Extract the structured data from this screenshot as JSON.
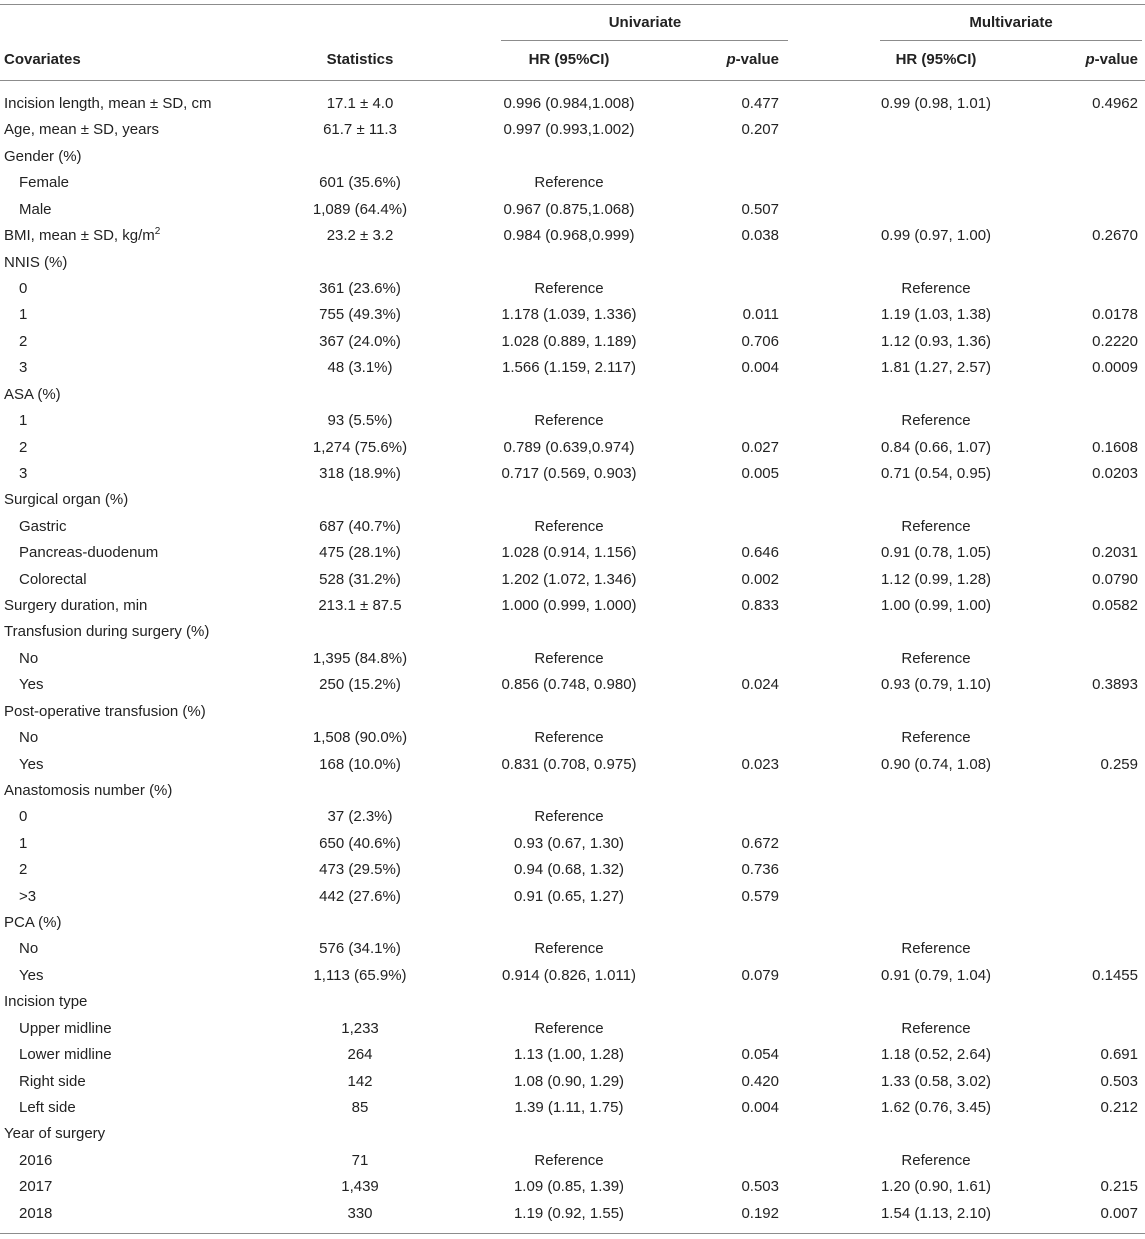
{
  "header": {
    "univariate": "Univariate",
    "multivariate": "Multivariate",
    "covariates": "Covariates",
    "statistics": "Statistics",
    "hr_uni": "HR (95%CI)",
    "p_uni_italic": "p",
    "p_uni_rest": "-value",
    "hr_multi": "HR (95%CI)",
    "p_multi_italic": "p",
    "p_multi_rest": "-value"
  },
  "rows": [
    {
      "label": "Incision length, mean ± SD, cm",
      "stat": "17.1 ± 4.0",
      "uni_hr": "0.996 (0.984,1.008)",
      "uni_p": "0.477",
      "multi_hr": "0.99 (0.98, 1.01)",
      "multi_p": "0.4962"
    },
    {
      "label": "Age, mean ± SD, years",
      "stat": "61.7 ± 11.3",
      "uni_hr": "0.997 (0.993,1.002)",
      "uni_p": "0.207",
      "multi_hr": "",
      "multi_p": ""
    },
    {
      "label": "Gender (%)",
      "stat": "",
      "uni_hr": "",
      "uni_p": "",
      "multi_hr": "",
      "multi_p": ""
    },
    {
      "label": "Female",
      "stat": "601 (35.6%)",
      "uni_hr": "Reference",
      "uni_p": "",
      "multi_hr": "",
      "multi_p": ""
    },
    {
      "label": "Male",
      "stat": "1,089 (64.4%)",
      "uni_hr": "0.967 (0.875,1.068)",
      "uni_p": "0.507",
      "multi_hr": "",
      "multi_p": ""
    },
    {
      "label": "BMI, mean ± SD, kg/m",
      "sup": "2",
      "stat": "23.2 ± 3.2",
      "uni_hr": "0.984 (0.968,0.999)",
      "uni_p": "0.038",
      "multi_hr": "0.99 (0.97, 1.00)",
      "multi_p": "0.2670"
    },
    {
      "label": "NNIS (%)",
      "stat": "",
      "uni_hr": "",
      "uni_p": "",
      "multi_hr": "",
      "multi_p": ""
    },
    {
      "label": "0",
      "stat": "361 (23.6%)",
      "uni_hr": "Reference",
      "uni_p": "",
      "multi_hr": "Reference",
      "multi_p": ""
    },
    {
      "label": "1",
      "stat": "755 (49.3%)",
      "uni_hr": "1.178 (1.039, 1.336)",
      "uni_p": "0.011",
      "multi_hr": "1.19 (1.03, 1.38)",
      "multi_p": "0.0178"
    },
    {
      "label": "2",
      "stat": "367 (24.0%)",
      "uni_hr": "1.028 (0.889, 1.189)",
      "uni_p": "0.706",
      "multi_hr": "1.12 (0.93, 1.36)",
      "multi_p": "0.2220"
    },
    {
      "label": "3",
      "stat": "48 (3.1%)",
      "uni_hr": "1.566 (1.159, 2.117)",
      "uni_p": "0.004",
      "multi_hr": "1.81 (1.27, 2.57)",
      "multi_p": "0.0009"
    },
    {
      "label": "ASA (%)",
      "stat": "",
      "uni_hr": "",
      "uni_p": "",
      "multi_hr": "",
      "multi_p": ""
    },
    {
      "label": "1",
      "stat": "93 (5.5%)",
      "uni_hr": "Reference",
      "uni_p": "",
      "multi_hr": "Reference",
      "multi_p": ""
    },
    {
      "label": "2",
      "stat": "1,274 (75.6%)",
      "uni_hr": "0.789 (0.639,0.974)",
      "uni_p": "0.027",
      "multi_hr": "0.84 (0.66, 1.07)",
      "multi_p": "0.1608"
    },
    {
      "label": "3",
      "stat": "318 (18.9%)",
      "uni_hr": "0.717 (0.569, 0.903)",
      "uni_p": "0.005",
      "multi_hr": "0.71 (0.54, 0.95)",
      "multi_p": "0.0203"
    },
    {
      "label": "Surgical organ (%)",
      "stat": "",
      "uni_hr": "",
      "uni_p": "",
      "multi_hr": "",
      "multi_p": ""
    },
    {
      "label": "Gastric",
      "stat": "687 (40.7%)",
      "uni_hr": "Reference",
      "uni_p": "",
      "multi_hr": "Reference",
      "multi_p": ""
    },
    {
      "label": "Pancreas-duodenum",
      "stat": "475 (28.1%)",
      "uni_hr": "1.028 (0.914, 1.156)",
      "uni_p": "0.646",
      "multi_hr": "0.91 (0.78, 1.05)",
      "multi_p": "0.2031"
    },
    {
      "label": "Colorectal",
      "stat": "528 (31.2%)",
      "uni_hr": "1.202 (1.072, 1.346)",
      "uni_p": "0.002",
      "multi_hr": "1.12 (0.99, 1.28)",
      "multi_p": "0.0790"
    },
    {
      "label": "Surgery duration, min",
      "stat": "213.1 ± 87.5",
      "uni_hr": "1.000 (0.999, 1.000)",
      "uni_p": "0.833",
      "multi_hr": "1.00 (0.99, 1.00)",
      "multi_p": "0.0582"
    },
    {
      "label": "Transfusion during surgery (%)",
      "stat": "",
      "uni_hr": "",
      "uni_p": "",
      "multi_hr": "",
      "multi_p": ""
    },
    {
      "label": "No",
      "stat": "1,395 (84.8%)",
      "uni_hr": "Reference",
      "uni_p": "",
      "multi_hr": "Reference",
      "multi_p": ""
    },
    {
      "label": "Yes",
      "stat": "250 (15.2%)",
      "uni_hr": "0.856 (0.748, 0.980)",
      "uni_p": "0.024",
      "multi_hr": "0.93 (0.79, 1.10)",
      "multi_p": "0.3893"
    },
    {
      "label": "Post-operative transfusion (%)",
      "stat": "",
      "uni_hr": "",
      "uni_p": "",
      "multi_hr": "",
      "multi_p": ""
    },
    {
      "label": "No",
      "stat": "1,508 (90.0%)",
      "uni_hr": "Reference",
      "uni_p": "",
      "multi_hr": "Reference",
      "multi_p": ""
    },
    {
      "label": "Yes",
      "stat": "168 (10.0%)",
      "uni_hr": "0.831 (0.708, 0.975)",
      "uni_p": "0.023",
      "multi_hr": "0.90 (0.74, 1.08)",
      "multi_p": "0.259"
    },
    {
      "label": "Anastomosis number (%)",
      "stat": "",
      "uni_hr": "",
      "uni_p": "",
      "multi_hr": "",
      "multi_p": ""
    },
    {
      "label": "0",
      "stat": "37 (2.3%)",
      "uni_hr": "Reference",
      "uni_p": "",
      "multi_hr": "",
      "multi_p": ""
    },
    {
      "label": "1",
      "stat": "650 (40.6%)",
      "uni_hr": "0.93 (0.67, 1.30)",
      "uni_p": "0.672",
      "multi_hr": "",
      "multi_p": ""
    },
    {
      "label": "2",
      "stat": "473 (29.5%)",
      "uni_hr": "0.94 (0.68, 1.32)",
      "uni_p": "0.736",
      "multi_hr": "",
      "multi_p": ""
    },
    {
      "label": ">3",
      "stat": "442 (27.6%)",
      "uni_hr": "0.91 (0.65, 1.27)",
      "uni_p": "0.579",
      "multi_hr": "",
      "multi_p": ""
    },
    {
      "label": "PCA (%)",
      "stat": "",
      "uni_hr": "",
      "uni_p": "",
      "multi_hr": "",
      "multi_p": ""
    },
    {
      "label": "No",
      "stat": "576 (34.1%)",
      "uni_hr": "Reference",
      "uni_p": "",
      "multi_hr": "Reference",
      "multi_p": ""
    },
    {
      "label": "Yes",
      "stat": "1,113 (65.9%)",
      "uni_hr": "0.914 (0.826, 1.011)",
      "uni_p": "0.079",
      "multi_hr": "0.91 (0.79, 1.04)",
      "multi_p": "0.1455"
    },
    {
      "label": "Incision type",
      "stat": "",
      "uni_hr": "",
      "uni_p": "",
      "multi_hr": "",
      "multi_p": ""
    },
    {
      "label": "Upper midline",
      "stat": "1,233",
      "uni_hr": "Reference",
      "uni_p": "",
      "multi_hr": "Reference",
      "multi_p": ""
    },
    {
      "label": "Lower midline",
      "stat": "264",
      "uni_hr": "1.13 (1.00, 1.28)",
      "uni_p": "0.054",
      "multi_hr": "1.18 (0.52, 2.64)",
      "multi_p": "0.691"
    },
    {
      "label": "Right side",
      "stat": "142",
      "uni_hr": "1.08 (0.90, 1.29)",
      "uni_p": "0.420",
      "multi_hr": "1.33 (0.58, 3.02)",
      "multi_p": "0.503"
    },
    {
      "label": "Left side",
      "stat": "85",
      "uni_hr": "1.39 (1.11, 1.75)",
      "uni_p": "0.004",
      "multi_hr": "1.62 (0.76, 3.45)",
      "multi_p": "0.212"
    },
    {
      "label": "Year of surgery",
      "stat": "",
      "uni_hr": "",
      "uni_p": "",
      "multi_hr": "",
      "multi_p": ""
    },
    {
      "label": "2016",
      "stat": "71",
      "uni_hr": "Reference",
      "uni_p": "",
      "multi_hr": "Reference",
      "multi_p": ""
    },
    {
      "label": "2017",
      "stat": "1,439",
      "uni_hr": "1.09 (0.85, 1.39)",
      "uni_p": "0.503",
      "multi_hr": "1.20 (0.90, 1.61)",
      "multi_p": "0.215"
    },
    {
      "label": "2018",
      "stat": "330",
      "uni_hr": "1.19 (0.92, 1.55)",
      "uni_p": "0.192",
      "multi_hr": "1.54 (1.13, 2.10)",
      "multi_p": "0.007"
    }
  ]
}
